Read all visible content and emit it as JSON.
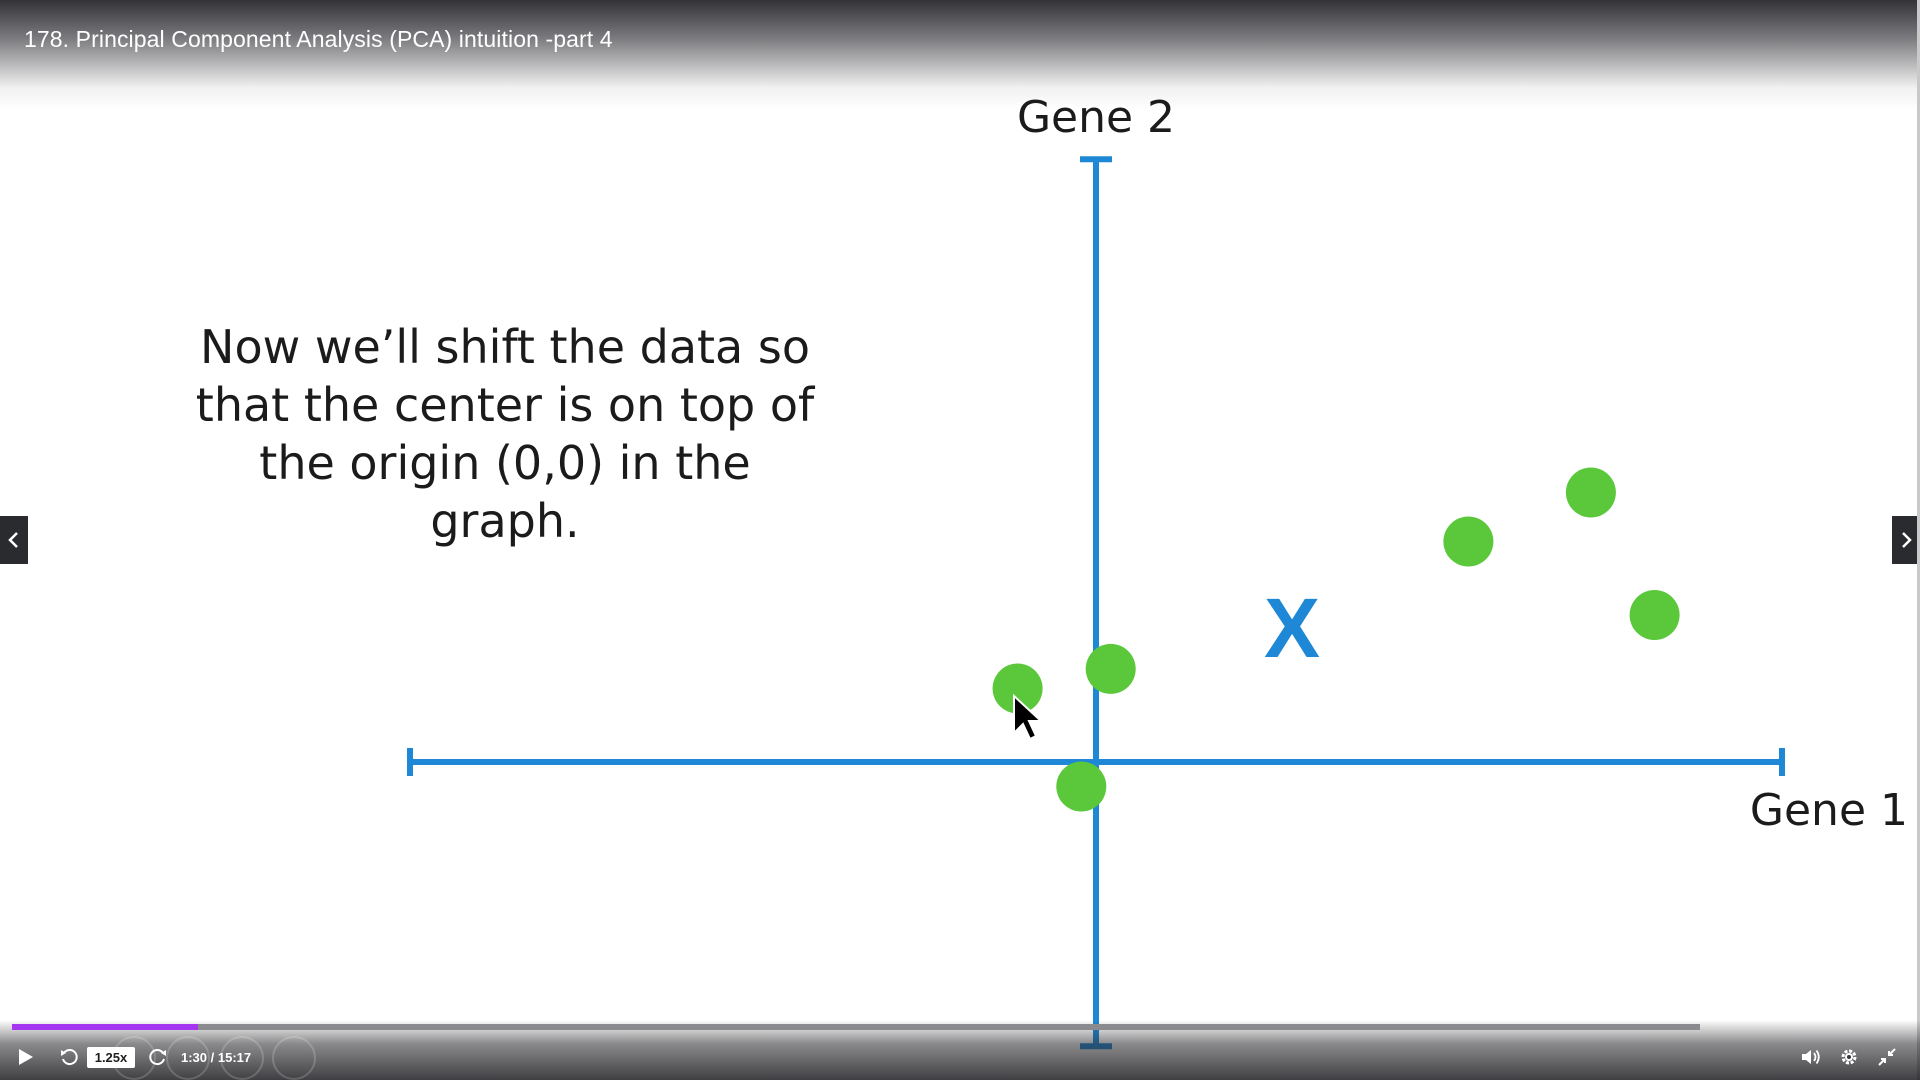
{
  "header": {
    "title": "178. Principal Component Analysis (PCA) intuition -part 4"
  },
  "slide": {
    "text_lines": [
      "Now we’ll shift the data so",
      "that the center is on top of",
      "the origin (0,0) in the graph."
    ]
  },
  "chart_data": {
    "type": "scatter",
    "xlabel": "Gene 1",
    "ylabel": "Gene 2",
    "points": [
      {
        "x": -1.6,
        "y": 1.5
      },
      {
        "x": 0.3,
        "y": 1.9
      },
      {
        "x": -0.3,
        "y": -0.5
      },
      {
        "x": 7.6,
        "y": 4.5
      },
      {
        "x": 10.1,
        "y": 5.5
      },
      {
        "x": 11.4,
        "y": 3.0
      }
    ],
    "center_marker": {
      "label": "X",
      "x": 4.0,
      "y": 2.6
    },
    "xlim": [
      -14,
      14
    ],
    "ylim": [
      -5.8,
      12.3
    ],
    "point_color": "#5ac83a",
    "axis_color": "#1e88d6",
    "center_color": "#1e88d6"
  },
  "controls": {
    "speed": "1.25x",
    "time": "1:30 / 15:17",
    "progress_percent": 11,
    "progress_color": "#a435f0"
  }
}
